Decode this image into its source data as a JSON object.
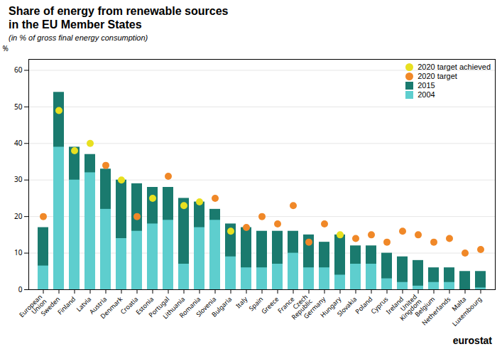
{
  "chart_data": {
    "type": "bar",
    "title": "Share of energy from renewable sources\nin the EU Member States",
    "subtitle": "(in % of gross final energy consumption)",
    "ylabel": "%",
    "annotations": [
      "eurostat"
    ],
    "categories": [
      "European\nUnion",
      "Sweden",
      "Finland",
      "Latvia",
      "Austria",
      "Denmark",
      "Croatia",
      "Estonia",
      "Portugal",
      "Lithuania",
      "Romania",
      "Slovenia",
      "Bulgaria",
      "Italy",
      "Spain",
      "Greece",
      "France",
      "Czech\nRepublic",
      "Germany",
      "Hungary",
      "Slovakia",
      "Poland",
      "Cyprus",
      "Ireland",
      "United\nKingdom",
      "Belgium",
      "Netherlands",
      "Malta",
      "Luxembourg"
    ],
    "series": [
      {
        "name": "2020 target achieved",
        "type": "scatter",
        "marker": "circle",
        "color": "#e8e020",
        "values": [
          null,
          49,
          38,
          40,
          null,
          30,
          null,
          25,
          null,
          23,
          24,
          null,
          16,
          null,
          null,
          null,
          null,
          null,
          null,
          15,
          null,
          null,
          null,
          null,
          null,
          null,
          null,
          null,
          null
        ]
      },
      {
        "name": "2020 target",
        "type": "scatter",
        "marker": "circle",
        "color": "#f08828",
        "values": [
          20,
          null,
          null,
          null,
          34,
          null,
          20,
          null,
          31,
          null,
          null,
          25,
          null,
          17,
          20,
          18,
          23,
          13,
          18,
          null,
          14,
          15,
          13,
          16,
          15,
          13,
          14,
          10,
          11
        ]
      },
      {
        "name": "2015",
        "type": "bar",
        "color": "#1a7a6e",
        "values": [
          17,
          54,
          39,
          37,
          33,
          30,
          29,
          28,
          28,
          25,
          24,
          22,
          18,
          17,
          16,
          16,
          16,
          15,
          13,
          15,
          12,
          12,
          10,
          9,
          8,
          6,
          6,
          5,
          5
        ]
      },
      {
        "name": "2004",
        "type": "bar",
        "color": "#5ecece",
        "values": [
          6.5,
          39,
          30,
          32,
          22,
          14,
          16,
          18,
          19,
          7,
          17,
          19,
          9,
          6,
          6,
          7,
          10,
          6,
          6,
          4,
          7,
          7,
          3,
          2,
          1,
          2,
          2,
          0,
          0.5
        ]
      }
    ],
    "ylim": [
      0,
      63
    ],
    "yticks": [
      0,
      10,
      20,
      30,
      40,
      50,
      60
    ],
    "grid": true,
    "legend": "upper right"
  }
}
